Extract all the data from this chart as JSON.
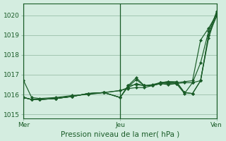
{
  "bg_color": "#d4ede0",
  "grid_color": "#9abfaa",
  "line_color": "#1a5c28",
  "xlabel": "Pression niveau de la mer( hPa )",
  "xtick_labels": [
    "Mer",
    "Jeu",
    "Ven"
  ],
  "xtick_positions": [
    0,
    48,
    96
  ],
  "ylim": [
    1014.8,
    1020.6
  ],
  "yticks": [
    1015,
    1016,
    1017,
    1018,
    1019,
    1020
  ],
  "lines": [
    [
      0,
      1016.7,
      4,
      1015.85,
      8,
      1015.8,
      16,
      1015.85,
      24,
      1015.95,
      32,
      1016.0,
      40,
      1016.1,
      48,
      1016.2,
      52,
      1016.35,
      56,
      1016.55,
      60,
      1016.45,
      64,
      1016.5,
      68,
      1016.6,
      72,
      1016.55,
      76,
      1016.6,
      80,
      1016.65,
      84,
      1016.7,
      88,
      1018.75,
      92,
      1019.35,
      96,
      1020.05
    ],
    [
      0,
      1015.85,
      4,
      1015.75,
      8,
      1015.75,
      16,
      1015.8,
      24,
      1015.9,
      32,
      1016.05,
      40,
      1016.1,
      48,
      1016.2,
      52,
      1016.3,
      56,
      1016.35,
      60,
      1016.35,
      64,
      1016.45,
      68,
      1016.55,
      72,
      1016.5,
      76,
      1016.55,
      80,
      1016.6,
      84,
      1016.6,
      88,
      1017.6,
      92,
      1019.2,
      96,
      1020.15
    ],
    [
      0,
      1015.85,
      4,
      1015.75,
      8,
      1015.75,
      16,
      1015.8,
      24,
      1015.9,
      32,
      1016.05,
      40,
      1016.1,
      48,
      1015.85,
      52,
      1016.4,
      56,
      1016.75,
      60,
      1016.45,
      64,
      1016.45,
      68,
      1016.55,
      72,
      1016.6,
      76,
      1016.55,
      80,
      1016.05,
      84,
      1016.6,
      88,
      1016.7,
      92,
      1019.0,
      96,
      1019.95
    ],
    [
      0,
      1015.85,
      4,
      1015.75,
      8,
      1015.75,
      16,
      1015.8,
      24,
      1015.9,
      32,
      1016.05,
      40,
      1016.1,
      48,
      1015.85,
      52,
      1016.45,
      56,
      1016.85,
      60,
      1016.45,
      64,
      1016.45,
      68,
      1016.6,
      72,
      1016.65,
      76,
      1016.6,
      80,
      1016.1,
      84,
      1016.05,
      88,
      1016.7,
      92,
      1018.85,
      96,
      1020.1
    ],
    [
      0,
      1015.85,
      4,
      1015.75,
      8,
      1015.75,
      16,
      1015.8,
      24,
      1015.9,
      32,
      1016.05,
      40,
      1016.1,
      48,
      1015.85,
      52,
      1016.45,
      56,
      1016.5,
      60,
      1016.45,
      64,
      1016.45,
      68,
      1016.6,
      72,
      1016.65,
      76,
      1016.65,
      80,
      1016.1,
      84,
      1016.05,
      88,
      1016.7,
      92,
      1019.0,
      96,
      1020.2
    ]
  ],
  "vlines": [
    0.0,
    48.0,
    96.0
  ],
  "figsize": [
    3.2,
    2.0
  ],
  "dpi": 100,
  "tick_fontsize": 6.5,
  "xlabel_fontsize": 7.5
}
